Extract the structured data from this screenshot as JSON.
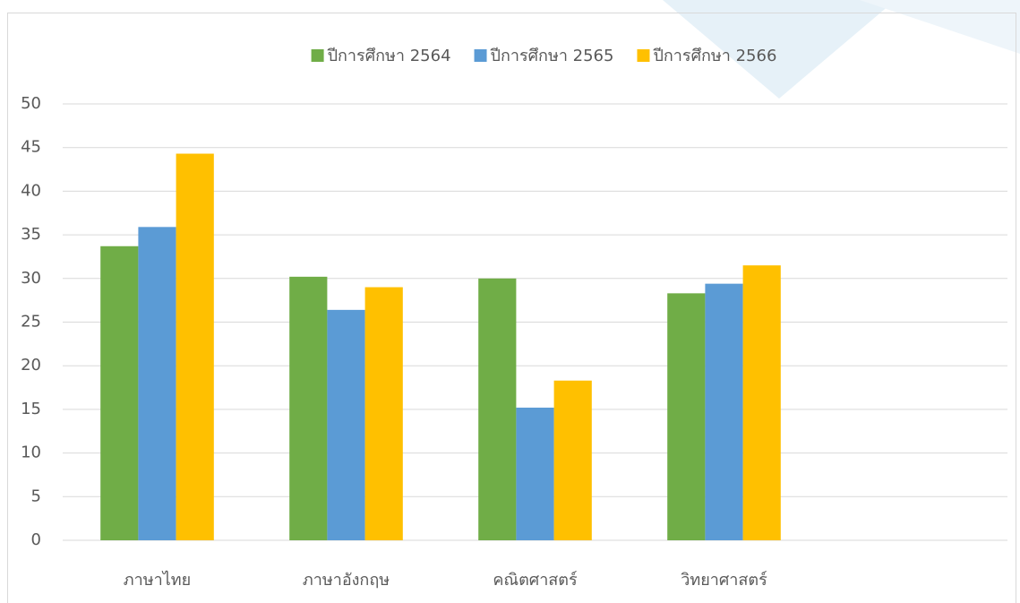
{
  "chart_data": {
    "type": "bar",
    "categories": [
      "ภาษาไทย",
      "ภาษาอังกฤษ",
      "คณิตศาสตร์",
      "วิทยาศาสตร์",
      null
    ],
    "series": [
      {
        "name": "ปีการศึกษา 2564",
        "color": "#70ad47",
        "values": [
          33.7,
          30.2,
          30.0,
          28.3,
          null
        ]
      },
      {
        "name": "ปีการศึกษา 2565",
        "color": "#5b9bd5",
        "values": [
          35.9,
          26.4,
          15.2,
          29.4,
          null
        ]
      },
      {
        "name": "ปีการศึกษา 2566",
        "color": "#ffc000",
        "values": [
          44.3,
          29.0,
          18.3,
          31.5,
          null
        ]
      }
    ],
    "ylim": [
      0,
      50
    ],
    "yticks": [
      0,
      5,
      10,
      15,
      20,
      25,
      30,
      35,
      40,
      45,
      50
    ],
    "grid": true,
    "legend": "top"
  }
}
